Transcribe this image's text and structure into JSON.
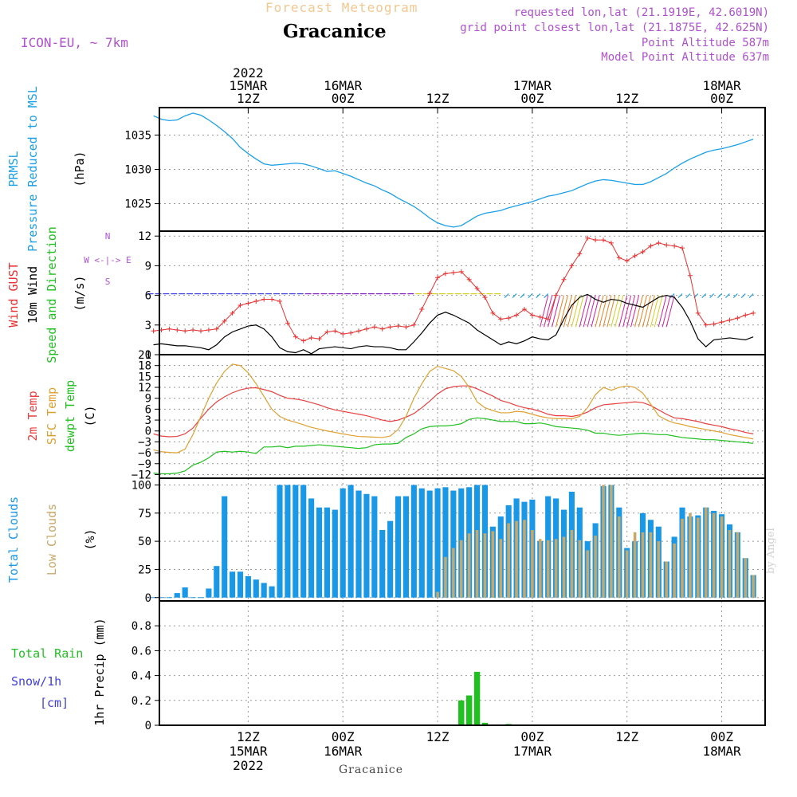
{
  "header": {
    "subtitle": "Forecast Meteogram",
    "title": "Gracanice",
    "model": "ICON-EU, ~ 7km",
    "requested": "requested lon,lat (21.1919E, 42.6019N)",
    "gridpoint": "grid point closest lon,lat (21.1875E, 42.625N)",
    "point_alt": "Point Altitude 587m",
    "model_alt": "Model Point Altitude 637m"
  },
  "footer": "Gracanice",
  "credit": "by Angel",
  "colors": {
    "pressure": "#1aa0e8",
    "gust": "#e83030",
    "wind": "#000000",
    "temp2m": "#e84040",
    "sfc": "#e0a030",
    "dewpt": "#20c020",
    "total_clouds": "#1a98e8",
    "low_clouds": "#c8a868",
    "rain": "#20c020",
    "snow": "#4040e0",
    "label_purple": "#b050d0"
  },
  "time_axis": {
    "top_labels": [
      {
        "lines": [
          "2022",
          "15MAR",
          "12Z"
        ],
        "h": 12
      },
      {
        "lines": [
          "16MAR",
          "00Z"
        ],
        "h": 24
      },
      {
        "lines": [
          "12Z"
        ],
        "h": 36
      },
      {
        "lines": [
          "17MAR",
          "00Z"
        ],
        "h": 48
      },
      {
        "lines": [
          "12Z"
        ],
        "h": 60
      },
      {
        "lines": [
          "18MAR",
          "00Z"
        ],
        "h": 72
      }
    ],
    "bottom_labels": [
      {
        "lines": [
          "12Z",
          "15MAR",
          "2022"
        ],
        "h": 12
      },
      {
        "lines": [
          "00Z",
          "16MAR"
        ],
        "h": 24
      },
      {
        "lines": [
          "12Z"
        ],
        "h": 36
      },
      {
        "lines": [
          "00Z",
          "17MAR"
        ],
        "h": 48
      },
      {
        "lines": [
          "12Z"
        ],
        "h": 60
      },
      {
        "lines": [
          "00Z",
          "18MAR"
        ],
        "h": 72
      }
    ]
  },
  "panel_labels": {
    "pressure": {
      "prmsl": "PRMSL",
      "desc": "Pressure Reduced to MSL",
      "unit": "(hPa)"
    },
    "wind": {
      "gust": "Wind GUST",
      "wind10": "10m Wind",
      "speeddir": "Speed and Direction",
      "unit": "(m/s)",
      "compass_n": "N",
      "compass_s": "S",
      "compass_line": "W <-|-> E"
    },
    "temp": {
      "t2m": "2m Temp",
      "sfc": "SFC Temp",
      "dew": "dewpt Temp",
      "unit": "(C)"
    },
    "clouds": {
      "total": "Total Clouds",
      "low": "Low Clouds",
      "unit": "(%)"
    },
    "precip": {
      "rain": "Total  Rain",
      "snow": "Snow/1h",
      "snow_unit": "[cm]",
      "axis": "1hr Precip (mm)"
    }
  },
  "chart_data": [
    {
      "type": "line",
      "name": "pressure",
      "ylabel": "(hPa)",
      "ylim": [
        1021,
        1039
      ],
      "yticks": [
        1025,
        1030,
        1035
      ],
      "x_hours": [
        0,
        1,
        2,
        3,
        4,
        5,
        6,
        7,
        8,
        9,
        10,
        11,
        12,
        13,
        14,
        15,
        16,
        17,
        18,
        19,
        20,
        21,
        22,
        23,
        24,
        25,
        26,
        27,
        28,
        29,
        30,
        31,
        32,
        33,
        34,
        35,
        36,
        37,
        38,
        39,
        40,
        41,
        42,
        43,
        44,
        45,
        46,
        47,
        48,
        49,
        50,
        51,
        52,
        53,
        54,
        55,
        56,
        57,
        58,
        59,
        60,
        61,
        62,
        63,
        64,
        65,
        66,
        67,
        68,
        69,
        70,
        71,
        72,
        73,
        74,
        75,
        76
      ],
      "series": [
        {
          "values": [
            1037.8,
            1037.3,
            1037.1,
            1037.2,
            1037.8,
            1038.2,
            1037.9,
            1037.2,
            1036.4,
            1035.5,
            1034.5,
            1033.2,
            1032.3,
            1031.5,
            1030.8,
            1030.6,
            1030.7,
            1030.8,
            1030.9,
            1030.8,
            1030.5,
            1030.1,
            1029.7,
            1029.8,
            1029.4,
            1029.0,
            1028.5,
            1028.0,
            1027.6,
            1027.0,
            1026.5,
            1025.8,
            1025.2,
            1024.6,
            1023.8,
            1022.9,
            1022.2,
            1021.8,
            1021.6,
            1021.8,
            1022.5,
            1023.2,
            1023.6,
            1023.8,
            1024.0,
            1024.4,
            1024.7,
            1025.0,
            1025.3,
            1025.7,
            1026.1,
            1026.3,
            1026.6,
            1026.9,
            1027.4,
            1027.9,
            1028.3,
            1028.5,
            1028.4,
            1028.2,
            1028.0,
            1027.8,
            1027.8,
            1028.2,
            1028.8,
            1029.4,
            1030.2,
            1030.9,
            1031.5,
            1032.0,
            1032.5,
            1032.8,
            1033.0,
            1033.3,
            1033.6,
            1034.0,
            1034.4
          ]
        }
      ]
    },
    {
      "type": "line",
      "name": "wind",
      "ylabel": "(m/s)",
      "ylim": [
        0,
        12.5
      ],
      "yticks": [
        0,
        3,
        6,
        9,
        12
      ],
      "x_hours": [
        0,
        1,
        2,
        3,
        4,
        5,
        6,
        7,
        8,
        9,
        10,
        11,
        12,
        13,
        14,
        15,
        16,
        17,
        18,
        19,
        20,
        21,
        22,
        23,
        24,
        25,
        26,
        27,
        28,
        29,
        30,
        31,
        32,
        33,
        34,
        35,
        36,
        37,
        38,
        39,
        40,
        41,
        42,
        43,
        44,
        45,
        46,
        47,
        48,
        49,
        50,
        51,
        52,
        53,
        54,
        55,
        56,
        57,
        58,
        59,
        60,
        61,
        62,
        63,
        64,
        65,
        66,
        67,
        68,
        69,
        70,
        71,
        72,
        73,
        74,
        75,
        76
      ],
      "series": [
        {
          "name": "Wind GUST",
          "values": [
            2.4,
            2.5,
            2.6,
            2.5,
            2.4,
            2.5,
            2.4,
            2.5,
            2.6,
            3.4,
            4.2,
            5.0,
            5.2,
            5.4,
            5.6,
            5.6,
            5.4,
            3.2,
            1.8,
            1.4,
            1.7,
            1.6,
            2.3,
            2.4,
            2.1,
            2.2,
            2.4,
            2.6,
            2.8,
            2.6,
            2.8,
            2.9,
            2.8,
            3.0,
            4.6,
            6.2,
            7.8,
            8.2,
            8.3,
            8.4,
            7.6,
            6.7,
            5.8,
            4.2,
            3.6,
            3.7,
            4.0,
            4.6,
            4.0,
            3.8,
            3.6,
            6.0,
            7.6,
            9.0,
            10.2,
            11.8,
            11.6,
            11.6,
            11.3,
            9.8,
            9.5,
            10.0,
            10.4,
            11.0,
            11.3,
            11.1,
            11.0,
            10.8,
            8.0,
            4.2,
            3.0,
            3.1,
            3.3,
            3.5,
            3.7,
            4.0,
            4.2
          ]
        },
        {
          "name": "10m Wind",
          "values": [
            1.0,
            1.1,
            1.0,
            0.9,
            0.9,
            0.8,
            0.7,
            0.5,
            1.0,
            1.8,
            2.3,
            2.6,
            2.9,
            3.0,
            2.6,
            1.8,
            0.7,
            0.3,
            0.2,
            0.5,
            0.1,
            0.6,
            0.7,
            0.8,
            0.7,
            0.6,
            0.8,
            0.9,
            0.8,
            0.8,
            0.7,
            0.5,
            0.5,
            1.3,
            2.2,
            3.2,
            4.0,
            4.3,
            4.0,
            3.6,
            3.2,
            2.5,
            2.0,
            1.5,
            1.0,
            1.3,
            1.1,
            1.4,
            1.8,
            1.6,
            1.5,
            2.0,
            3.6,
            5.0,
            5.8,
            6.1,
            5.6,
            5.3,
            5.6,
            5.5,
            5.2,
            5.0,
            4.8,
            5.3,
            5.8,
            6.0,
            5.8,
            4.8,
            3.4,
            1.6,
            0.8,
            1.5,
            1.6,
            1.7,
            1.6,
            1.5,
            1.8
          ]
        }
      ]
    },
    {
      "type": "line",
      "name": "temperature",
      "ylabel": "(C)",
      "ylim": [
        -13,
        21
      ],
      "yticks": [
        -12,
        -9,
        -6,
        -3,
        0,
        3,
        6,
        9,
        12,
        15,
        18,
        21
      ],
      "x_hours": [
        0,
        1,
        2,
        3,
        4,
        5,
        6,
        7,
        8,
        9,
        10,
        11,
        12,
        13,
        14,
        15,
        16,
        17,
        18,
        19,
        20,
        21,
        22,
        23,
        24,
        25,
        26,
        27,
        28,
        29,
        30,
        31,
        32,
        33,
        34,
        35,
        36,
        37,
        38,
        39,
        40,
        41,
        42,
        43,
        44,
        45,
        46,
        47,
        48,
        49,
        50,
        51,
        52,
        53,
        54,
        55,
        56,
        57,
        58,
        59,
        60,
        61,
        62,
        63,
        64,
        65,
        66,
        67,
        68,
        69,
        70,
        71,
        72,
        73,
        74,
        75,
        76
      ],
      "series": [
        {
          "name": "2m Temp",
          "values": [
            -0.8,
            -1.4,
            -1.6,
            -1.5,
            -0.8,
            0.8,
            3.5,
            6.0,
            8.0,
            9.4,
            10.5,
            11.3,
            11.8,
            11.9,
            11.4,
            10.8,
            9.8,
            9.0,
            8.8,
            8.4,
            7.8,
            7.2,
            6.4,
            5.8,
            5.4,
            5.0,
            4.6,
            4.2,
            3.6,
            3.0,
            2.6,
            3.0,
            3.8,
            4.8,
            6.4,
            8.2,
            10.2,
            11.6,
            12.2,
            12.4,
            12.4,
            11.6,
            10.6,
            9.6,
            8.4,
            7.8,
            7.0,
            6.4,
            6.0,
            5.4,
            4.6,
            4.2,
            4.2,
            4.0,
            4.4,
            5.2,
            6.4,
            7.2,
            7.4,
            7.6,
            7.8,
            8.0,
            7.8,
            7.0,
            5.8,
            4.6,
            3.6,
            3.4,
            3.0,
            2.6,
            2.0,
            1.6,
            1.2,
            0.6,
            0.2,
            -0.4,
            -0.8
          ]
        },
        {
          "name": "SFC Temp",
          "values": [
            -5.2,
            -5.7,
            -5.9,
            -6.0,
            -5.0,
            -1.0,
            4.0,
            9.0,
            13.2,
            16.4,
            18.4,
            18.0,
            16.0,
            13.0,
            9.5,
            6.0,
            4.0,
            3.0,
            2.4,
            1.7,
            1.0,
            0.5,
            0.0,
            -0.4,
            -0.8,
            -1.2,
            -1.5,
            -1.6,
            -1.7,
            -1.8,
            -1.4,
            0.4,
            4.0,
            9.0,
            13.0,
            16.4,
            17.8,
            17.2,
            16.6,
            15.0,
            12.0,
            8.0,
            6.4,
            5.6,
            5.0,
            5.0,
            5.4,
            5.2,
            4.6,
            4.0,
            3.6,
            3.4,
            3.4,
            3.4,
            4.0,
            6.4,
            10.0,
            12.0,
            11.2,
            12.0,
            12.4,
            12.0,
            10.4,
            7.4,
            4.2,
            3.0,
            2.2,
            1.8,
            1.2,
            0.8,
            0.4,
            0.0,
            -0.4,
            -1.0,
            -1.4,
            -1.8,
            -2.2
          ]
        },
        {
          "name": "dewpt Temp",
          "values": [
            -11.6,
            -11.8,
            -11.8,
            -11.6,
            -11.0,
            -9.4,
            -8.6,
            -7.4,
            -5.8,
            -5.6,
            -5.8,
            -5.6,
            -5.8,
            -6.2,
            -4.4,
            -4.4,
            -4.2,
            -4.6,
            -4.2,
            -4.2,
            -4.0,
            -3.8,
            -4.0,
            -4.2,
            -4.4,
            -4.6,
            -4.8,
            -4.6,
            -3.8,
            -3.6,
            -3.6,
            -3.4,
            -1.8,
            -0.8,
            0.6,
            1.2,
            1.4,
            1.4,
            1.6,
            2.0,
            3.2,
            3.6,
            3.4,
            3.0,
            2.6,
            2.6,
            2.6,
            2.0,
            2.0,
            2.2,
            1.8,
            1.2,
            1.0,
            0.8,
            0.6,
            0.2,
            -0.6,
            -0.6,
            -1.0,
            -1.2,
            -1.0,
            -0.8,
            -0.6,
            -0.8,
            -1.0,
            -1.0,
            -1.4,
            -1.8,
            -2.0,
            -2.2,
            -2.4,
            -2.4,
            -2.6,
            -2.8,
            -3.0,
            -3.2,
            -3.4
          ]
        }
      ]
    },
    {
      "type": "bar",
      "name": "clouds",
      "ylabel": "(%)",
      "ylim": [
        -3,
        106
      ],
      "yticks": [
        0,
        25,
        50,
        75,
        100
      ],
      "x_hours": [
        0,
        1,
        2,
        3,
        4,
        5,
        6,
        7,
        8,
        9,
        10,
        11,
        12,
        13,
        14,
        15,
        16,
        17,
        18,
        19,
        20,
        21,
        22,
        23,
        24,
        25,
        26,
        27,
        28,
        29,
        30,
        31,
        32,
        33,
        34,
        35,
        36,
        37,
        38,
        39,
        40,
        41,
        42,
        43,
        44,
        45,
        46,
        47,
        48,
        49,
        50,
        51,
        52,
        53,
        54,
        55,
        56,
        57,
        58,
        59,
        60,
        61,
        62,
        63,
        64,
        65,
        66,
        67,
        68,
        69,
        70,
        71,
        72,
        73,
        74,
        75,
        76
      ],
      "series": [
        {
          "name": "Total Clouds",
          "values": [
            0,
            0,
            0,
            4,
            9,
            0,
            0,
            8,
            28,
            90,
            23,
            23,
            19,
            16,
            13,
            10,
            100,
            100,
            100,
            100,
            88,
            80,
            80,
            78,
            97,
            100,
            95,
            92,
            90,
            60,
            68,
            90,
            90,
            100,
            97,
            95,
            97,
            98,
            95,
            97,
            98,
            100,
            100,
            63,
            72,
            82,
            88,
            85,
            87,
            50,
            90,
            88,
            78,
            94,
            80,
            50,
            66,
            99,
            100,
            80,
            44,
            50,
            75,
            69,
            63,
            32,
            54,
            80,
            72,
            73,
            80,
            77,
            74,
            65,
            58,
            35,
            20
          ]
        },
        {
          "name": "Low Clouds",
          "values": [
            0,
            0,
            0,
            0,
            0,
            0,
            0,
            0,
            0,
            0,
            0,
            0,
            0,
            0,
            0,
            0,
            0,
            0,
            0,
            0,
            0,
            0,
            0,
            0,
            0,
            0,
            0,
            0,
            0,
            0,
            0,
            0,
            0,
            0,
            0,
            0,
            5,
            36,
            44,
            51,
            57,
            60,
            57,
            59,
            52,
            66,
            68,
            69,
            60,
            52,
            51,
            52,
            54,
            60,
            51,
            42,
            55,
            100,
            100,
            72,
            42,
            58,
            58,
            58,
            50,
            32,
            48,
            70,
            75,
            71,
            80,
            75,
            72,
            60,
            58,
            35,
            20
          ]
        }
      ]
    },
    {
      "type": "bar",
      "name": "precipitation",
      "ylabel": "1hr Precip (mm)",
      "ylim": [
        0,
        1.0
      ],
      "yticks": [
        0,
        0.2,
        0.4,
        0.6,
        0.8
      ],
      "yticklabels": [
        "0",
        "0.2",
        "0.4",
        "0.6",
        "0.8"
      ],
      "series": [
        {
          "name": "Total Rain",
          "x_hours": [
            39,
            40,
            41,
            42,
            45
          ],
          "values": [
            0.2,
            0.24,
            0.43,
            0.02,
            0.01
          ]
        }
      ]
    }
  ]
}
